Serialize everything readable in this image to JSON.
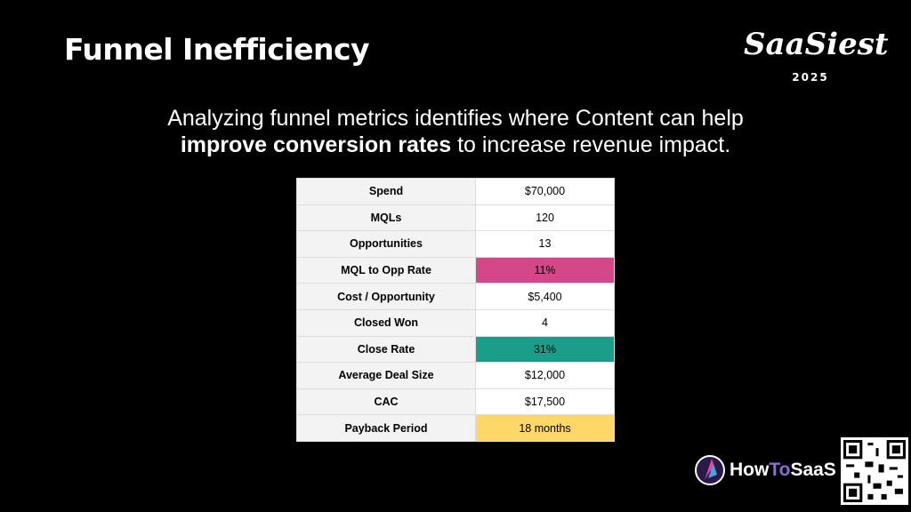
{
  "header": {
    "title": "Funnel Inefficiency"
  },
  "logo": {
    "name": "SaaSiest",
    "year": "2025"
  },
  "subtitle": {
    "line1": "Analyzing funnel metrics identifies where Content can help",
    "emphasis": "improve conversion rates",
    "rest": "to increase revenue impact."
  },
  "table": {
    "rows": [
      [
        "Spend",
        "$70,000"
      ],
      [
        "MQLs",
        "120"
      ],
      [
        "Opportunities",
        "13"
      ],
      [
        "MQL to Opp Rate",
        "11%"
      ],
      [
        "Cost / Opportunity",
        "$5,400"
      ],
      [
        "Closed Won",
        "4"
      ],
      [
        "Close Rate",
        "31%"
      ],
      [
        "Average Deal Size",
        "$12,000"
      ],
      [
        "CAC",
        "$17,500"
      ],
      [
        "Payback Period",
        "18 months"
      ]
    ]
  },
  "footer": {
    "brand": [
      "How",
      "To",
      "SaaS"
    ]
  }
}
